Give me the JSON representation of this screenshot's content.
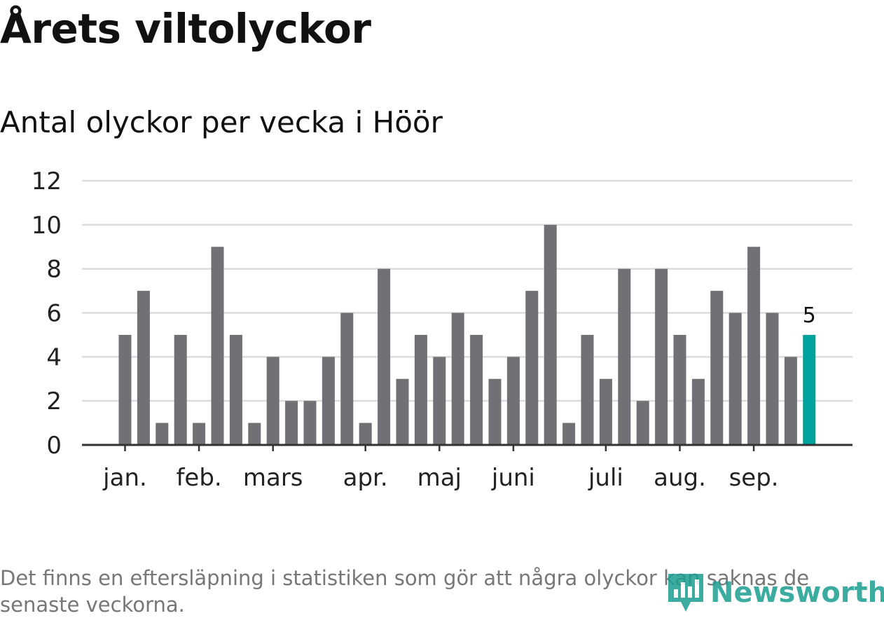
{
  "header": {
    "title": "Årets viltolyckor",
    "subtitle": "Antal olyckor per vecka i Höör"
  },
  "footer": {
    "note": "Det finns en eftersläpning i statistiken som gör att några olyckor kan saknas de senaste veckorna.",
    "brand": "Newsworthy"
  },
  "icons": {
    "brand_logo": "bar-chart-location-pin-icon"
  },
  "colors": {
    "bar": "#707075",
    "highlight": "#00a39b",
    "grid": "#dcdcdc",
    "axis": "#333333",
    "brand": "#1a9e8f"
  },
  "chart_data": {
    "type": "bar",
    "title": "Antal olyckor per vecka i Höör",
    "xlabel": "",
    "ylabel": "",
    "ylim": [
      0,
      12
    ],
    "yticks": [
      0,
      2,
      4,
      6,
      8,
      10,
      12
    ],
    "grid": true,
    "month_ticks": [
      {
        "label": "jan.",
        "week": 1
      },
      {
        "label": "feb.",
        "week": 5
      },
      {
        "label": "mars",
        "week": 9
      },
      {
        "label": "apr.",
        "week": 14
      },
      {
        "label": "maj",
        "week": 18
      },
      {
        "label": "juni",
        "week": 22
      },
      {
        "label": "juli",
        "week": 27
      },
      {
        "label": "aug.",
        "week": 31
      },
      {
        "label": "sep.",
        "week": 35
      }
    ],
    "weeks": [
      1,
      2,
      3,
      4,
      5,
      6,
      7,
      8,
      9,
      10,
      11,
      12,
      13,
      14,
      15,
      16,
      17,
      18,
      19,
      20,
      21,
      22,
      23,
      24,
      25,
      26,
      27,
      28,
      29,
      30,
      31,
      32,
      33,
      34,
      35,
      36,
      37,
      38
    ],
    "values": [
      5,
      7,
      1,
      5,
      1,
      9,
      5,
      1,
      4,
      2,
      2,
      4,
      6,
      1,
      8,
      3,
      5,
      4,
      6,
      5,
      3,
      4,
      7,
      10,
      1,
      5,
      3,
      8,
      2,
      8,
      5,
      3,
      7,
      6,
      9,
      6,
      4,
      5
    ],
    "highlight_last": true,
    "annotation": "5"
  }
}
